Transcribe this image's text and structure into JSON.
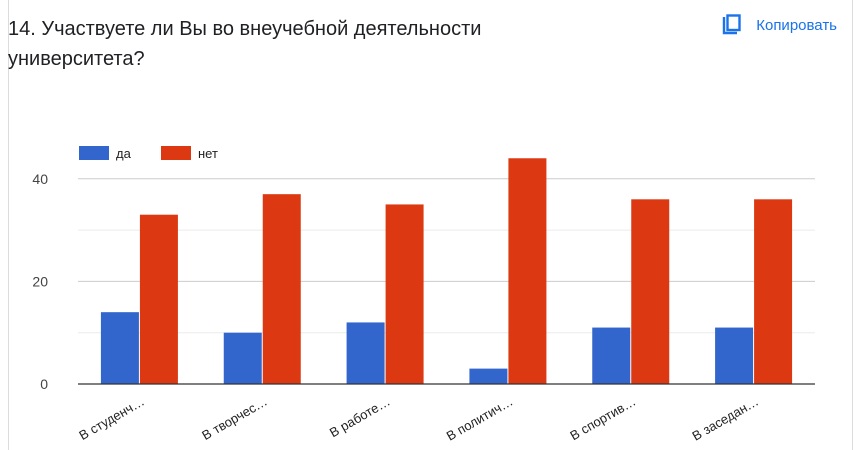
{
  "question": {
    "title": "14. Участвуете ли Вы во внеучебной деятельности университета?"
  },
  "actions": {
    "copy_label": "Копировать",
    "copy_icon": "copy-icon"
  },
  "colors": {
    "series_da": "#3366cc",
    "series_net": "#dc3912",
    "grid": "#cccccc",
    "baseline": "#333333",
    "accent": "#1a73e8"
  },
  "chart_data": {
    "type": "bar",
    "categories": [
      "В студенч…",
      "В творчес…",
      "В работе…",
      "В политич…",
      "В спортив…",
      "В заседан…"
    ],
    "series": [
      {
        "name": "да",
        "values": [
          14,
          10,
          12,
          3,
          11,
          11
        ]
      },
      {
        "name": "нет",
        "values": [
          33,
          37,
          35,
          44,
          36,
          36
        ]
      }
    ],
    "yticks": [
      0,
      20,
      40
    ],
    "ylim": [
      0,
      46
    ],
    "grid": true,
    "legend": "top-left"
  }
}
